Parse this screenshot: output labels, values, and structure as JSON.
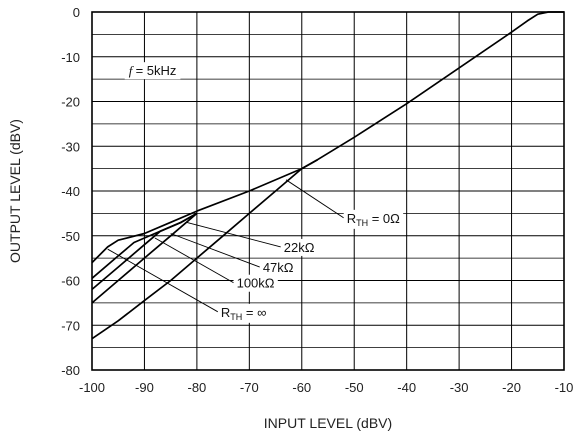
{
  "chart_data": {
    "type": "line",
    "xlabel": "INPUT LEVEL (dBV)",
    "ylabel": "OUTPUT LEVEL (dBV)",
    "xlim": [
      -100,
      -10
    ],
    "ylim": [
      -80,
      0
    ],
    "x_ticks": [
      -100,
      -90,
      -80,
      -70,
      -60,
      -50,
      -40,
      -30,
      -20,
      -10
    ],
    "y_ticks": [
      0,
      -10,
      -20,
      -30,
      -40,
      -50,
      -60,
      -70,
      -80
    ],
    "grid": true,
    "x_minor_step": 10,
    "y_minor_step": 5,
    "condition": {
      "prefix": "f",
      "text": "= 5kHz"
    },
    "series": [
      {
        "label": {
          "main": "R",
          "sub": "TH",
          "suffix": " = 0Ω"
        },
        "values": [
          [
            -100,
            -73
          ],
          [
            -95,
            -69
          ],
          [
            -90,
            -64.5
          ],
          [
            -85,
            -60
          ],
          [
            -80,
            -55
          ],
          [
            -75,
            -50
          ],
          [
            -70,
            -45
          ],
          [
            -65,
            -40
          ],
          [
            -60,
            -35
          ],
          [
            -57,
            -33
          ],
          [
            -50,
            -28
          ],
          [
            -40,
            -20.5
          ],
          [
            -30,
            -12.5
          ],
          [
            -20,
            -4.5
          ],
          [
            -17,
            -2
          ],
          [
            -15,
            -0.5
          ],
          [
            -13,
            0
          ],
          [
            -10,
            0
          ]
        ]
      },
      {
        "label": {
          "main": "",
          "sub": "",
          "suffix": "22kΩ"
        },
        "values": [
          [
            -100,
            -65
          ],
          [
            -95,
            -60
          ],
          [
            -90,
            -55
          ],
          [
            -85,
            -50
          ],
          [
            -80,
            -45
          ]
        ]
      },
      {
        "label": {
          "main": "",
          "sub": "",
          "suffix": "47kΩ"
        },
        "values": [
          [
            -100,
            -62
          ],
          [
            -95,
            -57
          ],
          [
            -90,
            -52
          ],
          [
            -87,
            -49
          ],
          [
            -83,
            -47
          ],
          [
            -80,
            -45
          ]
        ]
      },
      {
        "label": {
          "main": "",
          "sub": "",
          "suffix": "100kΩ"
        },
        "values": [
          [
            -100,
            -59.5
          ],
          [
            -95,
            -54.5
          ],
          [
            -92,
            -51.5
          ],
          [
            -88,
            -49.5
          ],
          [
            -83,
            -47
          ],
          [
            -80,
            -45
          ]
        ]
      },
      {
        "label": {
          "main": "R",
          "sub": "TH",
          "suffix": " = ∞"
        },
        "values": [
          [
            -100,
            -56
          ],
          [
            -97,
            -52.5
          ],
          [
            -95,
            -51
          ],
          [
            -90,
            -49.5
          ],
          [
            -85,
            -47
          ],
          [
            -80,
            -44.5
          ],
          [
            -70,
            -40
          ],
          [
            -60,
            -35
          ],
          [
            -57,
            -33
          ]
        ]
      }
    ]
  }
}
